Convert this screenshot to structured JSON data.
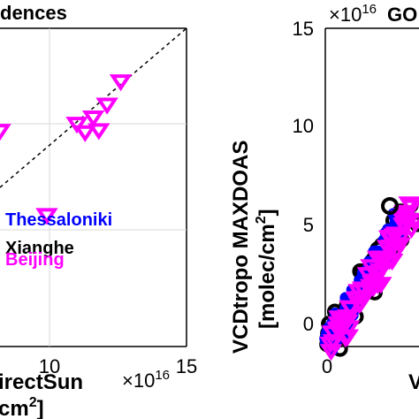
{
  "chart_data": [
    {
      "type": "scatter",
      "title": "dences",
      "xlabel_line1": "irectSun",
      "xlabel_line2": "cm",
      "xlabel_unit_sup": "2",
      "xlabel_close": "]",
      "x_multiplier": "×10",
      "x_multiplier_exp": "16",
      "xlim": [
        0,
        15
      ],
      "ylim": [
        0,
        15
      ],
      "x_ticks": [
        10,
        15
      ],
      "grid": true,
      "one_to_one_line": true,
      "legend_position": "bottom-left",
      "series": [
        {
          "name": "Thessaloniki",
          "marker": "circle",
          "color": "#0000ff",
          "points": []
        },
        {
          "name": "Xianghe",
          "marker": "circle-open",
          "color": "#000000",
          "points": [
            [
              7.5,
              6.3
            ]
          ]
        },
        {
          "name": "Beijing",
          "marker": "triangle-down-open",
          "color": "#ff00ff",
          "points": [
            [
              7.0,
              10.9
            ],
            [
              6.8,
              8.6
            ],
            [
              9.9,
              6.2
            ],
            [
              11.0,
              10.5
            ],
            [
              11.3,
              10.1
            ],
            [
              11.6,
              10.8
            ],
            [
              11.8,
              10.2
            ],
            [
              12.6,
              12.5
            ],
            [
              12.1,
              11.4
            ]
          ]
        }
      ]
    },
    {
      "type": "scatter",
      "title": "GO",
      "y_multiplier": "×10",
      "y_multiplier_exp": "16",
      "ylabel_line1": "VCDtropo MAXDOAS",
      "ylabel_line2": "[molec/cm",
      "ylabel_unit_sup": "2",
      "ylabel_close": "]",
      "xlabel_partial": "V",
      "ylim": [
        0,
        15
      ],
      "y_ticks": [
        0,
        5,
        10,
        15
      ],
      "x_ticks": [
        0
      ],
      "grid": false,
      "series": [
        {
          "name": "Thessaloniki",
          "marker": "circle",
          "color": "#0000ff"
        },
        {
          "name": "Xianghe",
          "marker": "circle-open",
          "color": "#000000"
        },
        {
          "name": "Beijing",
          "marker": "triangle-down-open",
          "color": "#ff00ff"
        }
      ]
    }
  ]
}
